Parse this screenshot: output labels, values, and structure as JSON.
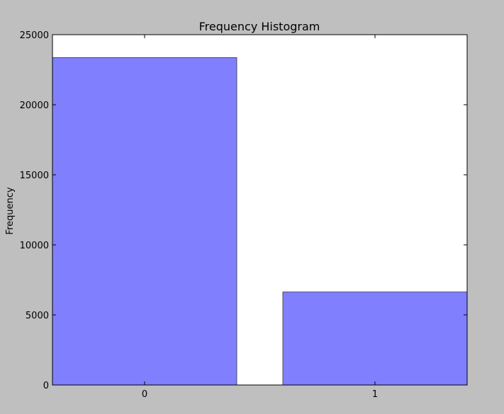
{
  "chart_data": {
    "type": "bar",
    "title": "Frequency Histogram",
    "xlabel": "",
    "ylabel": "Frequency",
    "categories": [
      "0",
      "1"
    ],
    "values": [
      23364,
      6636
    ],
    "ylim": [
      0,
      25000
    ],
    "yticks": [
      "0",
      "5000",
      "10000",
      "15000",
      "20000",
      "25000"
    ],
    "bar_color": "#8080ff",
    "bar_edge_color": "#333333",
    "background_color": "#bfbfbf",
    "plot_background_color": "#ffffff",
    "grid": false
  }
}
